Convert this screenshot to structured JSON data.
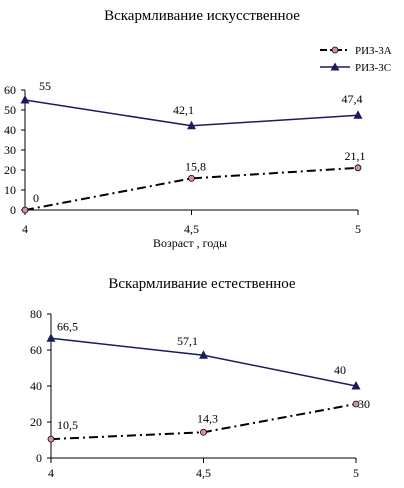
{
  "legend": {
    "series_a": "РИЗ-3А",
    "series_c": "РИЗ-3С"
  },
  "chart_data": [
    {
      "type": "line",
      "title": "Вскармливание искусственное",
      "xlabel": "Возраст , годы",
      "ylabel": "",
      "categories": [
        "4",
        "4,5",
        "5"
      ],
      "yticks": [
        "0",
        "10",
        "20",
        "30",
        "40",
        "50",
        "60"
      ],
      "ylim": [
        0,
        60
      ],
      "legend_position": "top-right",
      "series": [
        {
          "name": "РИЗ-3А",
          "values": [
            0,
            15.8,
            21.1
          ],
          "labels": [
            "0",
            "15,8",
            "21,1"
          ],
          "color": "#000000",
          "marker": "circle",
          "marker_color": "#d98cb3",
          "dash": "dash-dot"
        },
        {
          "name": "РИЗ-3С",
          "values": [
            55,
            42.1,
            47.4
          ],
          "labels": [
            "55",
            "42,1",
            "47,4"
          ],
          "color": "#1a1a5e",
          "marker": "triangle",
          "marker_color": "#1a1a5e",
          "dash": "solid"
        }
      ]
    },
    {
      "type": "line",
      "title": "Вскармливание естественное",
      "xlabel": "",
      "ylabel": "",
      "categories": [
        "4",
        "4,5",
        "5"
      ],
      "yticks": [
        "0",
        "20",
        "40",
        "60",
        "80"
      ],
      "ylim": [
        0,
        80
      ],
      "series": [
        {
          "name": "РИЗ-3А",
          "values": [
            10.5,
            14.3,
            30
          ],
          "labels": [
            "10,5",
            "14,3",
            "30"
          ],
          "color": "#000000",
          "marker": "circle",
          "marker_color": "#d98cb3",
          "dash": "dash-dot"
        },
        {
          "name": "РИЗ-3С",
          "values": [
            66.5,
            57.1,
            40
          ],
          "labels": [
            "66,5",
            "57,1",
            "40"
          ],
          "color": "#1a1a5e",
          "marker": "triangle",
          "marker_color": "#1a1a5e",
          "dash": "solid"
        }
      ]
    }
  ]
}
